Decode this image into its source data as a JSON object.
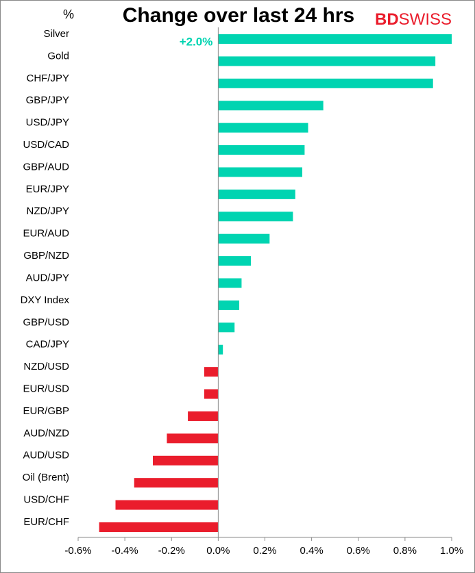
{
  "chart_data": {
    "type": "hbar",
    "title": "Change over last 24 hrs",
    "unit_label": "%",
    "brand": [
      "BD",
      "SWISS"
    ],
    "categories": [
      "Silver",
      "Gold",
      "CHF/JPY",
      "GBP/JPY",
      "USD/JPY",
      "USD/CAD",
      "GBP/AUD",
      "EUR/JPY",
      "NZD/JPY",
      "EUR/AUD",
      "GBP/NZD",
      "AUD/JPY",
      "DXY Index",
      "GBP/USD",
      "CAD/JPY",
      "NZD/USD",
      "EUR/USD",
      "EUR/GBP",
      "AUD/NZD",
      "AUD/USD",
      "Oil (Brent)",
      "USD/CHF",
      "EUR/CHF"
    ],
    "values": [
      2.0,
      0.93,
      0.92,
      0.45,
      0.385,
      0.37,
      0.36,
      0.33,
      0.32,
      0.22,
      0.14,
      0.1,
      0.09,
      0.07,
      0.02,
      -0.06,
      -0.06,
      -0.13,
      -0.22,
      -0.28,
      -0.36,
      -0.44,
      -0.51
    ],
    "value_labels": [
      "+2.0%",
      null,
      null,
      null,
      null,
      null,
      null,
      null,
      null,
      null,
      null,
      null,
      null,
      null,
      null,
      null,
      null,
      null,
      null,
      null,
      null,
      null,
      null
    ],
    "positive_color": "#00d4b1",
    "negative_color": "#ea1d2c",
    "xlim": [
      -0.6,
      1.0
    ],
    "xticks": [
      {
        "value": -0.6,
        "label": "-0.6%"
      },
      {
        "value": -0.4,
        "label": "-0.4%"
      },
      {
        "value": -0.2,
        "label": "-0.2%"
      },
      {
        "value": 0,
        "label": "0.0%"
      },
      {
        "value": 0.2,
        "label": "0.2%"
      },
      {
        "value": 0.4,
        "label": "0.4%"
      },
      {
        "value": 0.6,
        "label": "0.6%"
      },
      {
        "value": 0.8,
        "label": "0.8%"
      },
      {
        "value": 1.0,
        "label": "1.0%"
      }
    ],
    "grid": false
  }
}
